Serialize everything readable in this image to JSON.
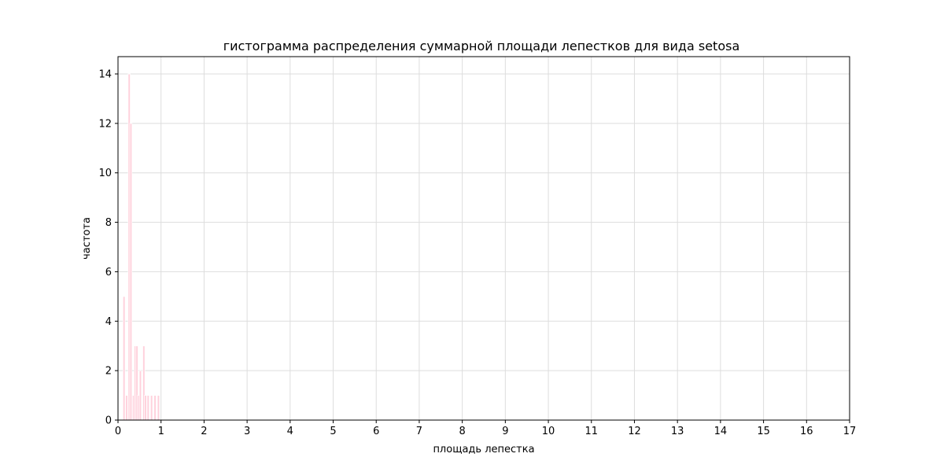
{
  "chart_data": {
    "type": "bar",
    "title": "гистограмма распределения суммарной площади лепестков для вида setosa",
    "xlabel": "площадь лепестка",
    "ylabel": "частота",
    "xlim": [
      0,
      17
    ],
    "ylim": [
      0,
      14.7
    ],
    "xticks": [
      "0",
      "1",
      "2",
      "3",
      "4",
      "5",
      "6",
      "7",
      "8",
      "9",
      "10",
      "11",
      "12",
      "13",
      "14",
      "15",
      "16",
      "17"
    ],
    "yticks": [
      "0",
      "2",
      "4",
      "6",
      "8",
      "10",
      "12",
      "14"
    ],
    "grid": true,
    "bar_color": "#ffd1dc",
    "bar_edge_color": "#ffffff",
    "bins": [
      {
        "x": 0.14,
        "value": 5
      },
      {
        "x": 0.2,
        "value": 1
      },
      {
        "x": 0.26,
        "value": 14
      },
      {
        "x": 0.3,
        "value": 12
      },
      {
        "x": 0.36,
        "value": 1
      },
      {
        "x": 0.4,
        "value": 3
      },
      {
        "x": 0.44,
        "value": 3
      },
      {
        "x": 0.48,
        "value": 1
      },
      {
        "x": 0.52,
        "value": 2
      },
      {
        "x": 0.6,
        "value": 3
      },
      {
        "x": 0.64,
        "value": 1
      },
      {
        "x": 0.7,
        "value": 1
      },
      {
        "x": 0.78,
        "value": 1
      },
      {
        "x": 0.86,
        "value": 1
      },
      {
        "x": 0.94,
        "value": 1
      }
    ],
    "bin_width": 0.05
  }
}
